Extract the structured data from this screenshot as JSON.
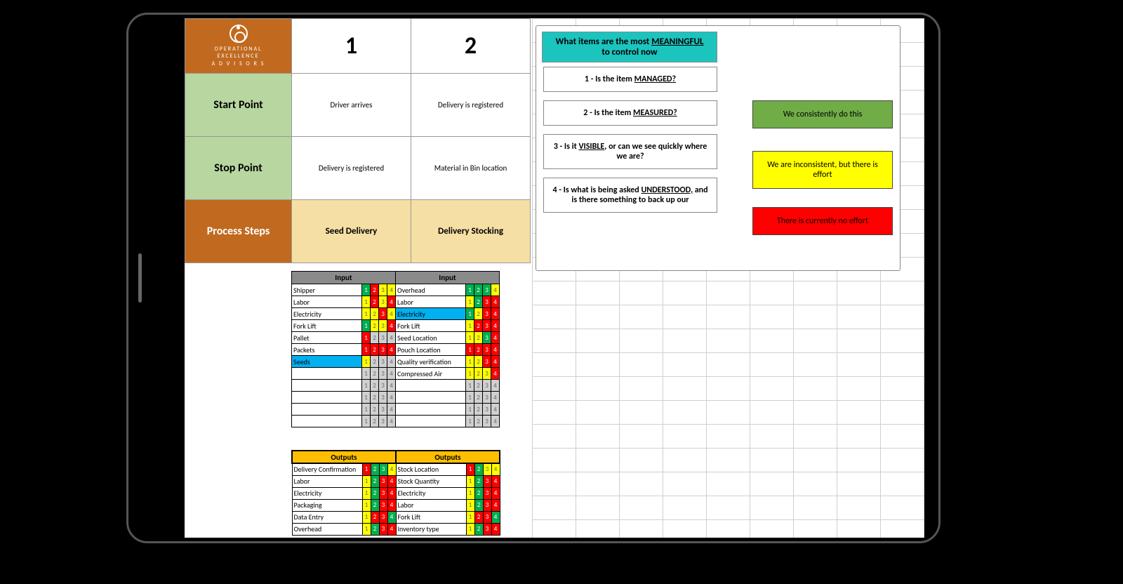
{
  "logo": {
    "line1": "OPERATIONAL",
    "line2": "EXCELLENCE",
    "line3": "A D V I S O R S"
  },
  "colors": {
    "green": "#00b050",
    "yellow": "#ffff00",
    "red": "#ff0000",
    "grey": "#d0d0d0",
    "blue": "#00b0f0",
    "tan": "#f6dfa5",
    "headGreen": "#b8d6a0",
    "headOrange": "#c16a1f",
    "outputsOrange": "#ffbf00",
    "teal": "#1cc4be",
    "statusGreen": "#70ad47"
  },
  "columnNumbers": [
    "1",
    "2"
  ],
  "rowLabels": {
    "start": "Start Point",
    "stop": "Stop Point",
    "steps": "Process Steps"
  },
  "startRow": [
    "Driver arrives",
    "Delivery is registered"
  ],
  "stopRow": [
    "Delivery is registered",
    "Material in Bin location"
  ],
  "stepsRow": [
    "Seed Delivery",
    "Delivery Stocking"
  ],
  "sectionLabels": {
    "input": "Input",
    "outputs": "Outputs"
  },
  "inputs1": [
    {
      "label": "Shipper",
      "cells": [
        "green",
        "red",
        "yellow",
        "yellow"
      ]
    },
    {
      "label": "Labor",
      "cells": [
        "yellow",
        "red",
        "yellow",
        "red"
      ]
    },
    {
      "label": "Electricity",
      "cells": [
        "yellow",
        "yellow",
        "red",
        "yellow"
      ]
    },
    {
      "label": "Fork Lift",
      "cells": [
        "green",
        "yellow",
        "yellow",
        "red"
      ]
    },
    {
      "label": "Pallet",
      "cells": [
        "red",
        "grey",
        "grey",
        "grey"
      ]
    },
    {
      "label": "Packets",
      "cells": [
        "red",
        "red",
        "red",
        "red"
      ]
    },
    {
      "label": "Seeds",
      "blue": true,
      "cells": [
        "yellow",
        "grey",
        "grey",
        "grey"
      ]
    },
    {
      "label": "",
      "cells": [
        "grey",
        "grey",
        "grey",
        "grey"
      ]
    },
    {
      "label": "",
      "cells": [
        "grey",
        "grey",
        "grey",
        "grey"
      ]
    },
    {
      "label": "",
      "cells": [
        "grey",
        "grey",
        "grey",
        "grey"
      ]
    },
    {
      "label": "",
      "cells": [
        "grey",
        "grey",
        "grey",
        "grey"
      ]
    },
    {
      "label": "",
      "cells": [
        "grey",
        "grey",
        "grey",
        "grey"
      ]
    }
  ],
  "inputs2": [
    {
      "label": "Overhead",
      "cells": [
        "green",
        "green",
        "green",
        "yellow"
      ]
    },
    {
      "label": "Labor",
      "cells": [
        "yellow",
        "green",
        "red",
        "red"
      ]
    },
    {
      "label": "Electricity",
      "blue": true,
      "cells": [
        "green",
        "yellow",
        "red",
        "red"
      ]
    },
    {
      "label": "Fork Lift",
      "cells": [
        "yellow",
        "red",
        "red",
        "red"
      ]
    },
    {
      "label": "Seed Location",
      "cells": [
        "yellow",
        "yellow",
        "green",
        "red"
      ]
    },
    {
      "label": "Pouch Location",
      "cells": [
        "red",
        "red",
        "red",
        "red"
      ]
    },
    {
      "label": "Quality verification",
      "cells": [
        "yellow",
        "yellow",
        "red",
        "red"
      ]
    },
    {
      "label": "Compressed Air",
      "cells": [
        "yellow",
        "yellow",
        "yellow",
        "red"
      ]
    },
    {
      "label": "",
      "cells": [
        "grey",
        "grey",
        "grey",
        "grey"
      ]
    },
    {
      "label": "",
      "cells": [
        "grey",
        "grey",
        "grey",
        "grey"
      ]
    },
    {
      "label": "",
      "cells": [
        "grey",
        "grey",
        "grey",
        "grey"
      ]
    },
    {
      "label": "",
      "cells": [
        "grey",
        "grey",
        "grey",
        "grey"
      ]
    }
  ],
  "outputs1": [
    {
      "label": "Delivery Confirmation",
      "cells": [
        "red",
        "green",
        "green",
        "yellow"
      ]
    },
    {
      "label": "Labor",
      "cells": [
        "yellow",
        "green",
        "red",
        "red"
      ]
    },
    {
      "label": "Electricity",
      "cells": [
        "yellow",
        "green",
        "red",
        "red"
      ]
    },
    {
      "label": "Packaging",
      "cells": [
        "yellow",
        "green",
        "red",
        "red"
      ]
    },
    {
      "label": "Data Entry",
      "cells": [
        "yellow",
        "red",
        "red",
        "green"
      ]
    },
    {
      "label": "Overhead",
      "cells": [
        "yellow",
        "green",
        "red",
        "red"
      ]
    }
  ],
  "outputs2": [
    {
      "label": "Stock Location",
      "cells": [
        "red",
        "green",
        "yellow",
        "yellow"
      ]
    },
    {
      "label": "Stock Quantity",
      "cells": [
        "yellow",
        "green",
        "red",
        "red"
      ]
    },
    {
      "label": "Electricity",
      "cells": [
        "yellow",
        "green",
        "red",
        "red"
      ]
    },
    {
      "label": "Labor",
      "cells": [
        "yellow",
        "green",
        "red",
        "red"
      ]
    },
    {
      "label": "Fork Lift",
      "cells": [
        "yellow",
        "red",
        "red",
        "green"
      ]
    },
    {
      "label": "Inventory type",
      "cells": [
        "yellow",
        "green",
        "red",
        "red"
      ]
    }
  ],
  "legend": {
    "title_a": "What items are the most ",
    "title_u": "MEANINGFUL",
    "title_b": " to control now",
    "q1a": "1 - Is the item ",
    "q1u": "MANAGED?",
    "q2a": "2 - Is the item ",
    "q2u": "MEASURED?",
    "q3a": "3 - Is it ",
    "q3u": "VISIBLE",
    "q3b": ", or can we see quickly where we are?",
    "q4a": "4 - Is what is being asked ",
    "q4u": "UNDERSTOOD,",
    "q4b": " and is there something to back up our",
    "statusGreen": "We consistently do this",
    "statusYellow": "We are inconsistent, but there is effort",
    "statusRed": "There is currently no effort"
  }
}
